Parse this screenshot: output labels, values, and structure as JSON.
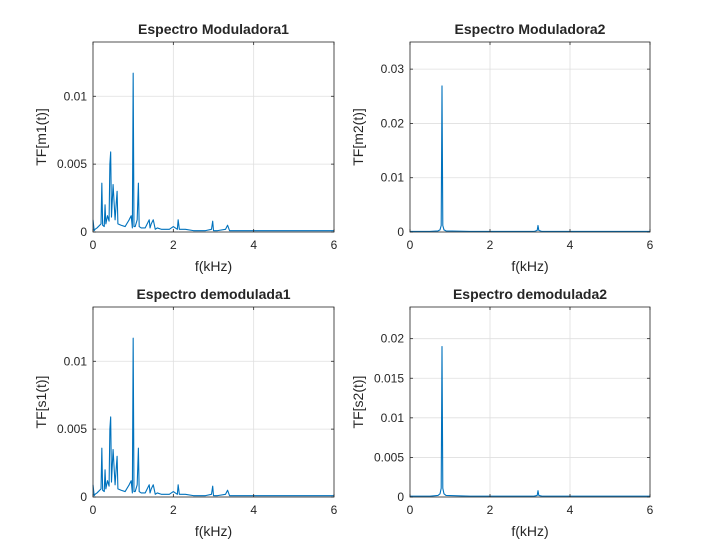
{
  "colors": {
    "series": "#0072bd",
    "axes": "#262626",
    "grid": "#dfdfdf",
    "background": "#ffffff"
  },
  "chart_data": [
    {
      "type": "line",
      "title": "Espectro Moduladora1",
      "xlabel": "f(kHz)",
      "ylabel": "TF[m1(t)]",
      "xlim": [
        0,
        6
      ],
      "ylim": [
        0,
        0.014
      ],
      "xticks": [
        0,
        2,
        4,
        6
      ],
      "xtick_labels": [
        "0",
        "2",
        "4",
        "6"
      ],
      "yticks": [
        0,
        0.005,
        0.01
      ],
      "ytick_labels": [
        "0",
        "0.005",
        "0.01"
      ],
      "grid": true,
      "series": [
        {
          "name": "m1",
          "x": [
            0,
            0.03,
            0.05,
            0.1,
            0.2,
            0.22,
            0.24,
            0.28,
            0.3,
            0.32,
            0.36,
            0.4,
            0.42,
            0.44,
            0.46,
            0.5,
            0.55,
            0.58,
            0.6,
            0.62,
            0.7,
            0.8,
            0.9,
            0.95,
            0.98,
            1.0,
            1.02,
            1.05,
            1.1,
            1.13,
            1.15,
            1.2,
            1.3,
            1.4,
            1.42,
            1.45,
            1.5,
            1.55,
            1.6,
            1.7,
            1.8,
            1.9,
            2.0,
            2.1,
            2.12,
            2.15,
            2.3,
            2.5,
            2.8,
            2.95,
            2.98,
            3.0,
            3.1,
            3.3,
            3.35,
            3.4,
            3.6,
            4.0,
            4.5,
            5.0,
            5.5,
            6.0
          ],
          "y": [
            0.0009,
            0.0001,
            0.0002,
            0.0003,
            0.0006,
            0.0036,
            0.0005,
            0.0004,
            0.002,
            0.0006,
            0.0012,
            0.0008,
            0.005,
            0.0059,
            0.0011,
            0.0035,
            0.0009,
            0.0022,
            0.003,
            0.0006,
            0.0005,
            0.0004,
            0.0009,
            0.0012,
            0.0003,
            0.0117,
            0.0004,
            0.0004,
            0.0009,
            0.0036,
            0.0004,
            0.0003,
            0.0003,
            0.0009,
            0.0003,
            0.0006,
            0.0009,
            0.0002,
            0.0003,
            0.0002,
            0.0002,
            0.0002,
            0.0004,
            0.0002,
            0.0009,
            0.0002,
            0.0002,
            0.0001,
            0.0001,
            0.0002,
            0.0008,
            0.0001,
            0.0001,
            0.0002,
            0.0005,
            0.0001,
            0.0001,
            0.0001,
            0.0001,
            0.0001,
            0.0001,
            0.0001
          ]
        }
      ]
    },
    {
      "type": "line",
      "title": "Espectro Moduladora2",
      "xlabel": "f(kHz)",
      "ylabel": "TF[m2(t)]",
      "xlim": [
        0,
        6
      ],
      "ylim": [
        0,
        0.035
      ],
      "xticks": [
        0,
        2,
        4,
        6
      ],
      "xtick_labels": [
        "0",
        "2",
        "4",
        "6"
      ],
      "yticks": [
        0,
        0.01,
        0.02,
        0.03
      ],
      "ytick_labels": [
        "0",
        "0.01",
        "0.02",
        "0.03"
      ],
      "grid": true,
      "series": [
        {
          "name": "m2",
          "x": [
            0,
            0.5,
            0.7,
            0.75,
            0.78,
            0.8,
            0.82,
            0.85,
            0.9,
            1.5,
            3.1,
            3.18,
            3.2,
            3.22,
            3.3,
            4.5,
            6.0
          ],
          "y": [
            0.0001,
            0.0001,
            0.0002,
            0.0004,
            0.0012,
            0.0269,
            0.0012,
            0.0004,
            0.0002,
            0.0001,
            0.0001,
            0.0003,
            0.0012,
            0.0003,
            0.0001,
            0.0001,
            0.0001
          ]
        }
      ]
    },
    {
      "type": "line",
      "title": "Espectro demodulada1",
      "xlabel": "f(kHz)",
      "ylabel": "TF[s1(t)]",
      "xlim": [
        0,
        6
      ],
      "ylim": [
        0,
        0.014
      ],
      "xticks": [
        0,
        2,
        4,
        6
      ],
      "xtick_labels": [
        "0",
        "2",
        "4",
        "6"
      ],
      "yticks": [
        0,
        0.005,
        0.01
      ],
      "ytick_labels": [
        "0",
        "0.005",
        "0.01"
      ],
      "grid": true,
      "series": [
        {
          "name": "s1",
          "x": [
            0,
            0.03,
            0.05,
            0.1,
            0.2,
            0.22,
            0.24,
            0.28,
            0.3,
            0.32,
            0.36,
            0.4,
            0.42,
            0.44,
            0.46,
            0.5,
            0.55,
            0.58,
            0.6,
            0.62,
            0.7,
            0.8,
            0.9,
            0.95,
            0.98,
            1.0,
            1.02,
            1.05,
            1.1,
            1.13,
            1.15,
            1.2,
            1.3,
            1.4,
            1.42,
            1.45,
            1.5,
            1.55,
            1.6,
            1.7,
            1.8,
            1.9,
            2.0,
            2.1,
            2.12,
            2.15,
            2.3,
            2.5,
            2.8,
            2.95,
            2.98,
            3.0,
            3.1,
            3.3,
            3.35,
            3.4,
            3.6,
            4.0,
            4.5,
            5.0,
            5.5,
            6.0
          ],
          "y": [
            0.0009,
            0.0001,
            0.0002,
            0.0003,
            0.0006,
            0.0036,
            0.0005,
            0.0004,
            0.002,
            0.0006,
            0.0012,
            0.0008,
            0.005,
            0.0059,
            0.0011,
            0.0035,
            0.0009,
            0.0022,
            0.003,
            0.0006,
            0.0005,
            0.0004,
            0.0009,
            0.0012,
            0.0003,
            0.0117,
            0.0004,
            0.0004,
            0.0009,
            0.0036,
            0.0004,
            0.0003,
            0.0003,
            0.0009,
            0.0003,
            0.0006,
            0.0009,
            0.0002,
            0.0003,
            0.0002,
            0.0002,
            0.0002,
            0.0004,
            0.0002,
            0.0009,
            0.0002,
            0.0002,
            0.0001,
            0.0001,
            0.0002,
            0.0008,
            0.0001,
            0.0001,
            0.0002,
            0.0005,
            0.0001,
            0.0001,
            0.0001,
            0.0001,
            0.0001,
            0.0001,
            0.0001
          ]
        }
      ]
    },
    {
      "type": "line",
      "title": "Espectro demodulada2",
      "xlabel": "f(kHz)",
      "ylabel": "TF[s2(t)]",
      "xlim": [
        0,
        6
      ],
      "ylim": [
        0,
        0.024
      ],
      "xticks": [
        0,
        2,
        4,
        6
      ],
      "xtick_labels": [
        "0",
        "2",
        "4",
        "6"
      ],
      "yticks": [
        0,
        0.005,
        0.01,
        0.015,
        0.02
      ],
      "ytick_labels": [
        "0",
        "0.005",
        "0.01",
        "0.015",
        "0.02"
      ],
      "grid": true,
      "series": [
        {
          "name": "s2",
          "x": [
            0,
            0.5,
            0.7,
            0.75,
            0.78,
            0.8,
            0.82,
            0.85,
            0.9,
            1.5,
            3.1,
            3.18,
            3.2,
            3.22,
            3.3,
            4.5,
            6.0
          ],
          "y": [
            0.0001,
            0.0001,
            0.0002,
            0.0004,
            0.0011,
            0.019,
            0.0011,
            0.0004,
            0.0002,
            0.0001,
            0.0001,
            0.0002,
            0.0008,
            0.0002,
            0.0001,
            0.0001,
            0.0001
          ]
        }
      ]
    }
  ]
}
